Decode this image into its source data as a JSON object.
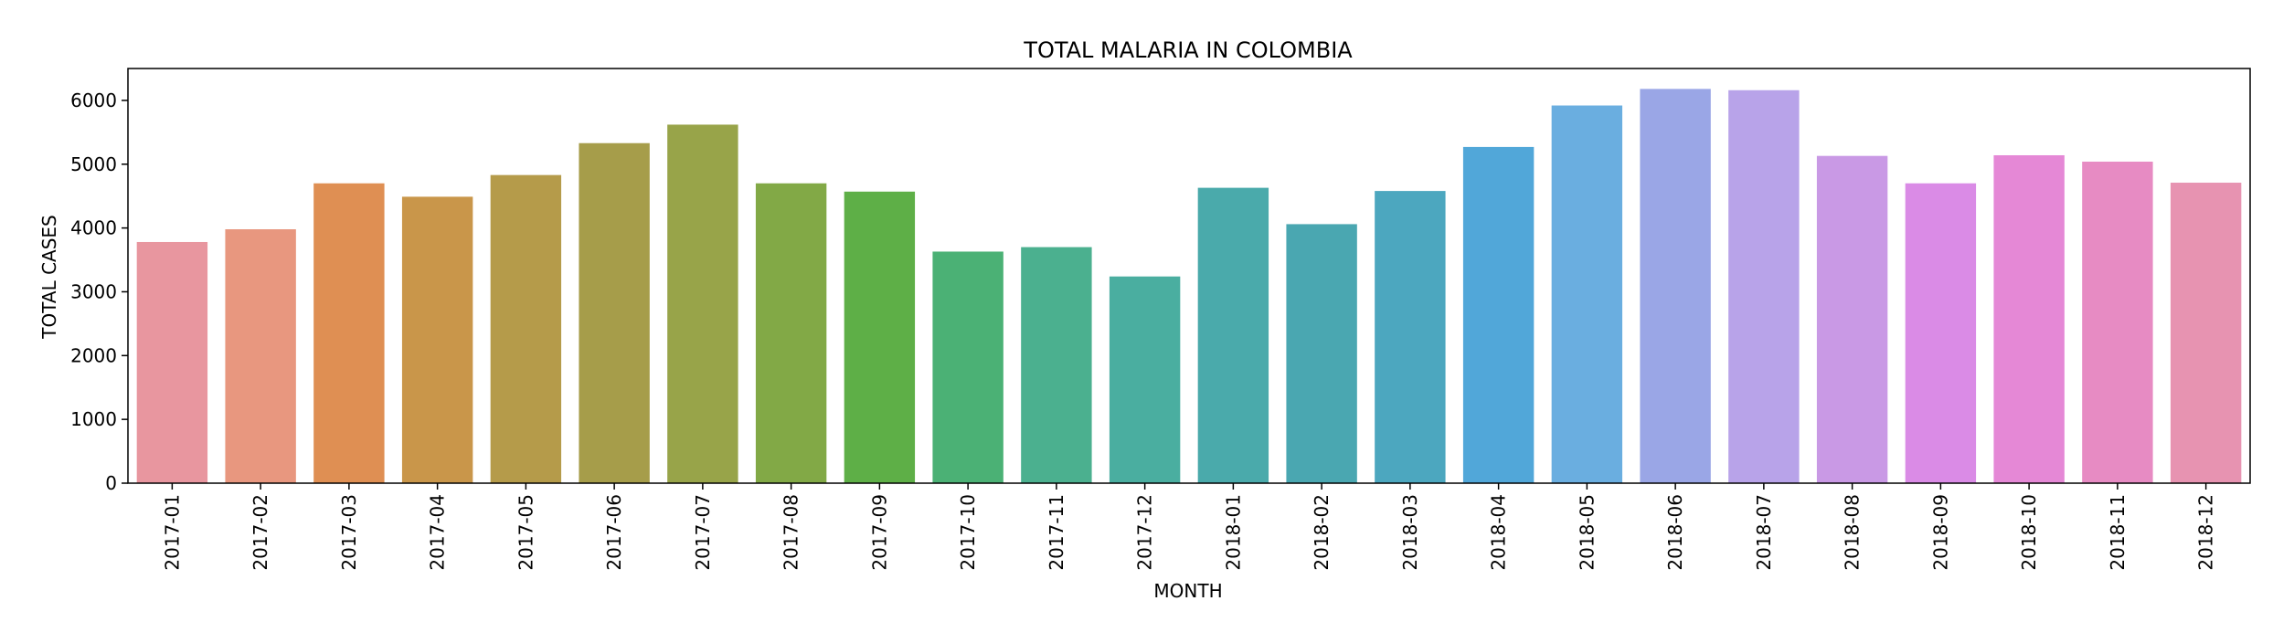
{
  "chart_data": {
    "type": "bar",
    "title": "TOTAL MALARIA IN COLOMBIA",
    "xlabel": "MONTH",
    "ylabel": "TOTAL CASES",
    "ylim": [
      0,
      6500
    ],
    "yticks": [
      "0",
      "1000",
      "2000",
      "3000",
      "4000",
      "5000",
      "6000"
    ],
    "grid": false,
    "categories": [
      "2017-01",
      "2017-02",
      "2017-03",
      "2017-04",
      "2017-05",
      "2017-06",
      "2017-07",
      "2017-08",
      "2017-09",
      "2017-10",
      "2017-11",
      "2017-12",
      "2018-01",
      "2018-02",
      "2018-03",
      "2018-04",
      "2018-05",
      "2018-06",
      "2018-07",
      "2018-08",
      "2018-09",
      "2018-10",
      "2018-11",
      "2018-12"
    ],
    "values": [
      3780,
      3980,
      4700,
      4490,
      4830,
      5330,
      5620,
      4700,
      4570,
      3630,
      3700,
      3240,
      4630,
      4060,
      4580,
      5270,
      5920,
      6180,
      6160,
      5130,
      4700,
      5140,
      5040,
      4710
    ],
    "colors": [
      "#e8969f",
      "#e8977f",
      "#df8f53",
      "#c9964a",
      "#b59b4a",
      "#a69d4a",
      "#98a449",
      "#82a946",
      "#5eaf47",
      "#4bb175",
      "#4bb08f",
      "#4aaea0",
      "#4aaaab",
      "#4aa7b1",
      "#4ca7bf",
      "#51a7d9",
      "#6aaee0",
      "#9aa6e6",
      "#b8a3e9",
      "#c999e5",
      "#da8be6",
      "#e588d6",
      "#e78bc3",
      "#e793b1"
    ]
  }
}
